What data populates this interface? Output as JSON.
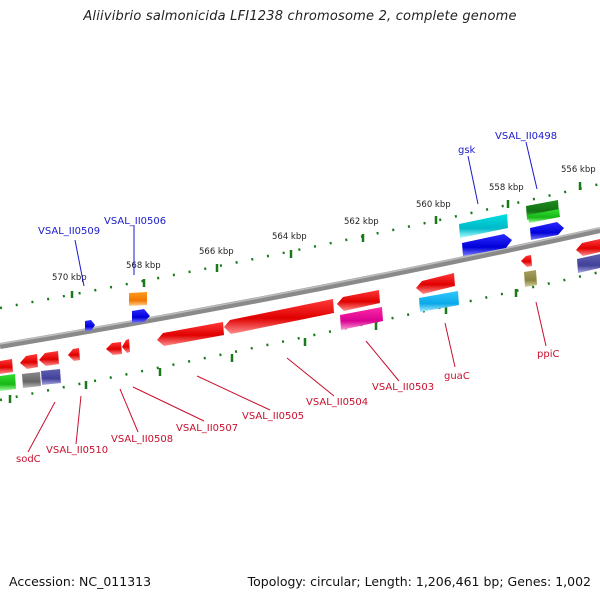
{
  "header": {
    "title": "Aliivibrio salmonicida LFI1238 chromosome 2, complete genome"
  },
  "footer": {
    "accession_label": "Accession: NC_011313",
    "stats_label": "Topology: circular; Length: 1,206,461 bp; Genes: 1,002"
  },
  "ruler": {
    "ticks": [
      "570 kbp",
      "568 kbp",
      "566 kbp",
      "564 kbp",
      "562 kbp",
      "560 kbp",
      "558 kbp",
      "556 kbp"
    ]
  },
  "genes": {
    "forward_labels": [
      "VSAL_II0509",
      "VSAL_II0506",
      "gsk",
      "VSAL_II0498"
    ],
    "reverse_labels": [
      "sodC",
      "VSAL_II0510",
      "VSAL_II0508",
      "VSAL_II0507",
      "VSAL_II0505",
      "VSAL_II0504",
      "VSAL_II0503",
      "guaC",
      "ppiC"
    ]
  },
  "colors": {
    "backbone": "#8a8a8a",
    "cds": "#ee1111",
    "forward_label": "#1a1acc",
    "reverse_label": "#c8102e",
    "tick": "#1a7a1a"
  }
}
